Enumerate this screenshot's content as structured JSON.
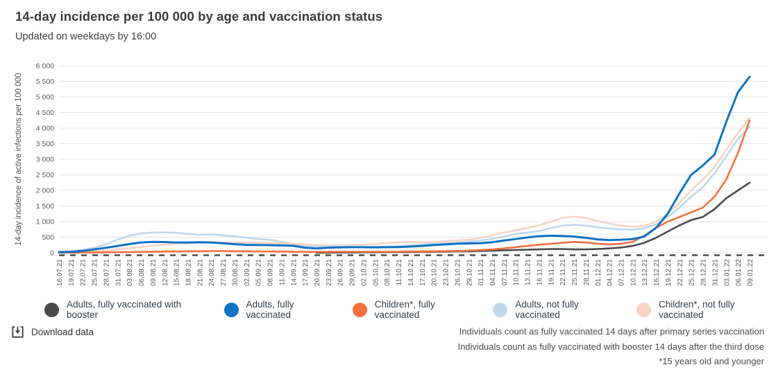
{
  "header": {
    "title": "14-day incidence per 100 000 by age and vaccination status",
    "subtitle": "Updated on weekdays by 16:00"
  },
  "chart_data": {
    "type": "line",
    "title": "14-day incidence per 100 000 by age and vaccination status",
    "xlabel": "",
    "ylabel": "14-day incidence of active infections per 100 000",
    "ylim": [
      0,
      6000
    ],
    "ytick_step": 500,
    "ytick_labels": [
      "0",
      "500",
      "1 000",
      "1 500",
      "2 000",
      "2 500",
      "3 000",
      "3 500",
      "4 000",
      "4 500",
      "5 000",
      "5 500",
      "6 000"
    ],
    "grid": "horizontal",
    "legend_position": "bottom",
    "x": [
      "16.07.21",
      "19.07.21",
      "22.07.21",
      "25.07.21",
      "28.07.21",
      "31.07.21",
      "03.08.21",
      "06.08.21",
      "09.08.21",
      "12.08.21",
      "15.08.21",
      "18.08.21",
      "21.08.21",
      "24.08.21",
      "27.08.21",
      "30.08.21",
      "02.09.21",
      "05.09.21",
      "08.09.21",
      "11.09.21",
      "14.09.21",
      "17.09.21",
      "20.09.21",
      "23.09.21",
      "26.09.21",
      "29.09.21",
      "02.10.21",
      "05.10.21",
      "08.10.21",
      "11.10.21",
      "14.10.21",
      "17.10.21",
      "20.10.21",
      "23.10.21",
      "26.10.21",
      "29.10.21",
      "01.11.21",
      "04.11.21",
      "07.11.21",
      "10.11.21",
      "13.11.21",
      "16.11.21",
      "19.11.21",
      "22.11.21",
      "25.11.21",
      "28.11.21",
      "01.12.21",
      "04.12.21",
      "07.12.21",
      "10.12.21",
      "13.12.21",
      "16.12.21",
      "19.12.21",
      "22.12.21",
      "25.12.21",
      "28.12.21",
      "31.12.21",
      "03.01.22",
      "06.01.22",
      "09.01.22"
    ],
    "series": [
      {
        "name": "Adults, fully vaccinated with booster",
        "color": "#4a4a4a",
        "values": [
          null,
          null,
          null,
          null,
          null,
          null,
          null,
          null,
          null,
          null,
          null,
          null,
          null,
          null,
          null,
          null,
          null,
          null,
          null,
          null,
          null,
          null,
          0,
          5,
          10,
          10,
          15,
          15,
          20,
          20,
          25,
          30,
          35,
          40,
          45,
          50,
          60,
          70,
          80,
          90,
          100,
          110,
          120,
          120,
          110,
          110,
          120,
          140,
          170,
          220,
          320,
          480,
          680,
          880,
          1050,
          1150,
          1400,
          1750,
          2000,
          2250
        ]
      },
      {
        "name": "Adults, fully vaccinated",
        "color": "#0d72c4",
        "values": [
          15,
          30,
          60,
          110,
          160,
          220,
          280,
          330,
          350,
          345,
          330,
          330,
          340,
          330,
          305,
          275,
          255,
          250,
          245,
          235,
          225,
          165,
          140,
          165,
          175,
          180,
          180,
          175,
          180,
          185,
          200,
          220,
          250,
          270,
          290,
          300,
          310,
          340,
          390,
          440,
          490,
          530,
          550,
          540,
          520,
          480,
          430,
          410,
          420,
          440,
          520,
          800,
          1250,
          1900,
          2500,
          2800,
          3150,
          4200,
          5150,
          5650
        ]
      },
      {
        "name": "Children*, fully vaccinated",
        "color": "#f3703f",
        "values": [
          5,
          5,
          10,
          10,
          15,
          20,
          25,
          30,
          35,
          40,
          45,
          50,
          50,
          55,
          55,
          50,
          50,
          45,
          45,
          40,
          35,
          30,
          30,
          30,
          30,
          30,
          30,
          30,
          35,
          35,
          40,
          45,
          50,
          55,
          60,
          70,
          90,
          110,
          140,
          180,
          220,
          260,
          290,
          320,
          350,
          330,
          290,
          270,
          290,
          350,
          550,
          800,
          1000,
          1150,
          1300,
          1450,
          1800,
          2350,
          3200,
          4250
        ]
      },
      {
        "name": "Adults, not fully vaccinated",
        "color": "#bdd7ef",
        "values": [
          45,
          55,
          90,
          160,
          270,
          420,
          550,
          620,
          650,
          655,
          640,
          605,
          580,
          590,
          560,
          530,
          490,
          440,
          420,
          350,
          285,
          230,
          205,
          190,
          185,
          180,
          185,
          190,
          200,
          215,
          240,
          265,
          285,
          310,
          330,
          355,
          390,
          450,
          520,
          600,
          650,
          700,
          790,
          870,
          900,
          870,
          820,
          780,
          750,
          740,
          780,
          920,
          1150,
          1450,
          1800,
          2100,
          2550,
          3100,
          3650,
          4050
        ]
      },
      {
        "name": "Children*, not fully vaccinated",
        "color": "#f8d3c5",
        "values": [
          5,
          10,
          20,
          40,
          70,
          110,
          150,
          190,
          230,
          260,
          290,
          310,
          320,
          330,
          330,
          325,
          330,
          325,
          315,
          300,
          290,
          270,
          255,
          250,
          245,
          250,
          260,
          280,
          310,
          330,
          340,
          330,
          345,
          370,
          400,
          420,
          480,
          560,
          650,
          720,
          800,
          880,
          1000,
          1120,
          1160,
          1120,
          1020,
          940,
          870,
          840,
          860,
          1000,
          1250,
          1600,
          2000,
          2350,
          2750,
          3300,
          3850,
          4330
        ]
      }
    ]
  },
  "footer": {
    "download_label": "Download data",
    "notes": [
      "Individuals count as fully vaccinated 14 days after primary series vaccination",
      "Individuals count as fully vaccinated with booster 14 days after the third dose",
      "*15 years old and younger"
    ]
  }
}
